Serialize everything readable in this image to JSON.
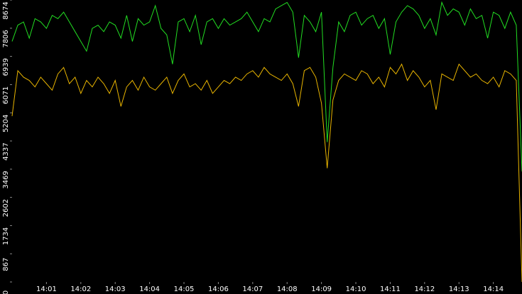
{
  "chart_data": {
    "type": "line",
    "categories": [
      null,
      null,
      null,
      null,
      null,
      null,
      "14:01",
      null,
      null,
      null,
      null,
      null,
      "14:02",
      null,
      null,
      null,
      null,
      null,
      "14:03",
      null,
      null,
      null,
      null,
      null,
      "14:04",
      null,
      null,
      null,
      null,
      null,
      "14:05",
      null,
      null,
      null,
      null,
      null,
      "14:06",
      null,
      null,
      null,
      null,
      null,
      "14:07",
      null,
      null,
      null,
      null,
      null,
      "14:08",
      null,
      null,
      null,
      null,
      null,
      "14:09",
      null,
      null,
      null,
      null,
      null,
      "14:10",
      null,
      null,
      null,
      null,
      null,
      "14:11",
      null,
      null,
      null,
      null,
      null,
      "14:12",
      null,
      null,
      null,
      null,
      null,
      "14:13",
      null,
      null,
      null,
      null,
      null,
      "14:14",
      null,
      null,
      null,
      null,
      null
    ],
    "series": [
      {
        "color": "#22dd22",
        "values": [
          7400,
          7900,
          8000,
          7500,
          8100,
          8000,
          7800,
          8200,
          8100,
          8300,
          8000,
          7700,
          7400,
          7100,
          7800,
          7900,
          7700,
          8000,
          7900,
          7500,
          8200,
          7400,
          8100,
          7900,
          8000,
          8500,
          7800,
          7600,
          6700,
          8000,
          8100,
          7700,
          8200,
          7300,
          8000,
          8100,
          7800,
          8100,
          7900,
          8000,
          8100,
          8300,
          8000,
          7700,
          8100,
          8000,
          8400,
          8500,
          8600,
          8300,
          6900,
          8200,
          8000,
          7700,
          8300,
          4300,
          6600,
          8000,
          7700,
          8200,
          8300,
          7900,
          8100,
          8200,
          7800,
          8100,
          7000,
          8000,
          8300,
          8500,
          8400,
          8200,
          7800,
          8100,
          7600,
          8600,
          8200,
          8400,
          8300,
          7900,
          8400,
          8100,
          8200,
          7500,
          8300,
          8200,
          7800,
          8300,
          7900,
          3400
        ]
      },
      {
        "color": "#e8b400",
        "values": [
          5100,
          6500,
          6300,
          6200,
          6000,
          6300,
          6100,
          5900,
          6400,
          6600,
          6100,
          6300,
          5800,
          6200,
          6000,
          6300,
          6100,
          5800,
          6200,
          5400,
          6000,
          6200,
          5900,
          6300,
          6000,
          5900,
          6100,
          6300,
          5800,
          6200,
          6400,
          6000,
          6100,
          5900,
          6200,
          5800,
          6000,
          6200,
          6100,
          6300,
          6200,
          6400,
          6500,
          6300,
          6600,
          6400,
          6300,
          6200,
          6400,
          6100,
          5400,
          6500,
          6600,
          6300,
          5500,
          3500,
          5600,
          6200,
          6400,
          6300,
          6200,
          6500,
          6400,
          6100,
          6300,
          6000,
          6600,
          6400,
          6700,
          6200,
          6500,
          6300,
          6000,
          6200,
          5300,
          6400,
          6300,
          6200,
          6700,
          6500,
          6300,
          6400,
          6200,
          6100,
          6300,
          6000,
          6500,
          6400,
          6200,
          0
        ]
      }
    ],
    "ylim": [
      0,
      8674
    ],
    "yticks": [
      0,
      867,
      1734,
      2602,
      3469,
      4337,
      5204,
      6071,
      6939,
      7806,
      8674
    ]
  }
}
